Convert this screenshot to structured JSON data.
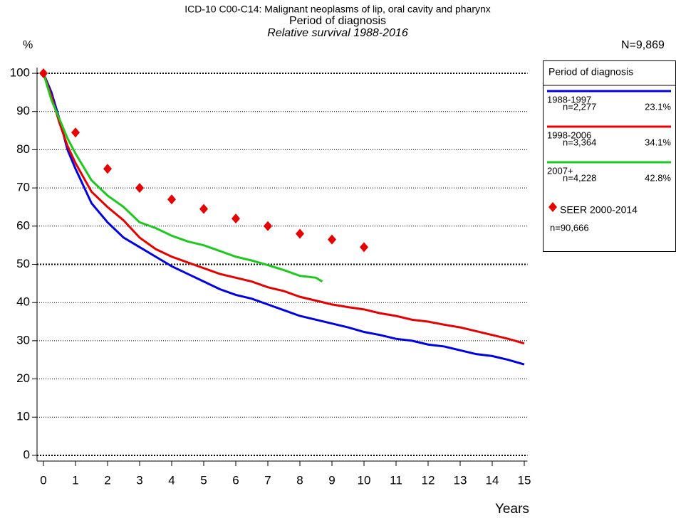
{
  "chart_data": {
    "type": "line",
    "title": "ICD-10 C00-C14: Malignant neoplasms of lip, oral cavity and pharynx",
    "subtitle": "Period of diagnosis",
    "subtitle2": "Relative survival 1988-2016",
    "y_label": "%",
    "x_label": "Years",
    "total_n": "N=9,869",
    "legend_title": "Period of diagnosis",
    "xlim": [
      -0.2,
      15.1
    ],
    "ylim": [
      -1.5,
      101.5
    ],
    "xticks": [
      0,
      1,
      2,
      3,
      4,
      5,
      6,
      7,
      8,
      9,
      10,
      11,
      12,
      13,
      14,
      15
    ],
    "yticks": [
      0,
      10,
      20,
      30,
      40,
      50,
      60,
      70,
      80,
      90,
      100
    ],
    "grid": true,
    "series": [
      {
        "name": "1988-1997",
        "n": "n=2,277",
        "share": "23.1%",
        "color": "#0000e6",
        "style": "line",
        "x": [
          0,
          0.25,
          0.5,
          0.75,
          1,
          1.5,
          2,
          2.5,
          3,
          3.5,
          4,
          4.5,
          5,
          5.5,
          6,
          6.5,
          7,
          7.5,
          8,
          8.5,
          9,
          9.5,
          10,
          10.5,
          11,
          11.5,
          12,
          12.5,
          13,
          13.5,
          14,
          14.5,
          15
        ],
        "values": [
          100,
          95,
          88,
          80,
          75,
          66,
          61,
          57,
          54.5,
          52,
          49.5,
          47.5,
          45.5,
          43.5,
          42,
          41,
          39.5,
          38,
          36.5,
          35.5,
          34.5,
          33.5,
          32.3,
          31.5,
          30.5,
          30,
          29,
          28.5,
          27.5,
          26.5,
          26,
          25,
          23.8
        ]
      },
      {
        "name": "1998-2006",
        "n": "n=3,364",
        "share": "34.1%",
        "color": "#e60000",
        "style": "line",
        "x": [
          0,
          0.25,
          0.5,
          0.75,
          1,
          1.5,
          2,
          2.5,
          3,
          3.5,
          4,
          4.5,
          5,
          5.5,
          6,
          6.5,
          7,
          7.5,
          8,
          8.5,
          9,
          9.5,
          10,
          10.5,
          11,
          11.5,
          12,
          12.5,
          13,
          13.5,
          14,
          14.5,
          15
        ],
        "values": [
          100,
          94,
          87,
          81,
          76.5,
          69,
          65,
          61.5,
          57,
          54,
          52,
          50.5,
          49,
          47.5,
          46.5,
          45.5,
          44,
          43,
          41.5,
          40.5,
          39.5,
          38.8,
          38.2,
          37.2,
          36.5,
          35.5,
          35,
          34.2,
          33.5,
          32.5,
          31.5,
          30.5,
          29.3
        ]
      },
      {
        "name": "2007+",
        "n": "n=4,228",
        "share": "42.8%",
        "color": "#1ec81e",
        "style": "line",
        "x": [
          0,
          0.25,
          0.5,
          0.75,
          1,
          1.5,
          2,
          2.5,
          3,
          3.5,
          4,
          4.5,
          5,
          5.5,
          6,
          6.5,
          7,
          7.5,
          8,
          8.5,
          8.7
        ],
        "values": [
          100,
          93,
          88,
          83,
          79,
          72,
          68,
          65,
          61,
          59.5,
          57.5,
          56,
          55,
          53.5,
          52,
          51,
          49.8,
          48.5,
          47,
          46.5,
          45.5
        ]
      },
      {
        "name": "SEER 2000-2014",
        "n": "n=90,666",
        "color": "#e60000",
        "style": "diamond",
        "x": [
          0,
          1,
          2,
          3,
          4,
          5,
          6,
          7,
          8,
          9,
          10
        ],
        "values": [
          100,
          84.5,
          75,
          70,
          67,
          64.5,
          62,
          60,
          58,
          56.5,
          54.5
        ]
      }
    ]
  }
}
